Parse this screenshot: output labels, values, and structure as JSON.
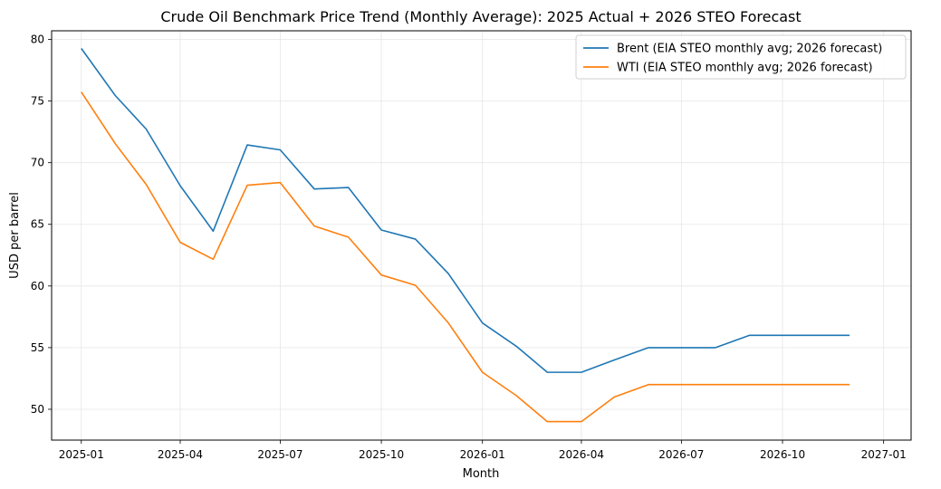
{
  "chart_data": {
    "type": "line",
    "title": "Crude Oil Benchmark Price Trend (Monthly Average): 2025 Actual + 2026 STEO Forecast",
    "xlabel": "Month",
    "ylabel": "USD per barrel",
    "x": [
      "2025-01",
      "2025-02",
      "2025-03",
      "2025-04",
      "2025-05",
      "2025-06",
      "2025-07",
      "2025-08",
      "2025-09",
      "2025-10",
      "2025-11",
      "2025-12",
      "2026-01",
      "2026-02",
      "2026-03",
      "2026-04",
      "2026-05",
      "2026-06",
      "2026-07",
      "2026-08",
      "2026-09",
      "2026-10",
      "2026-11",
      "2026-12"
    ],
    "x_ticks": [
      "2025-01",
      "2025-04",
      "2025-07",
      "2025-10",
      "2026-01",
      "2026-04",
      "2026-07",
      "2026-10",
      "2027-01"
    ],
    "xlim": [
      "2024-12-05",
      "2027-01-26"
    ],
    "ylim": [
      47.5,
      80.7
    ],
    "y_ticks": [
      50,
      55,
      60,
      65,
      70,
      75,
      80
    ],
    "grid": true,
    "legend_position": "top-right",
    "series": [
      {
        "name": "Brent (EIA STEO monthly avg; 2026 forecast)",
        "color": "#1f77b4",
        "values": [
          79.27,
          75.44,
          72.73,
          68.13,
          64.45,
          71.44,
          71.04,
          67.87,
          67.99,
          64.54,
          63.8,
          61.0,
          57.0,
          55.1,
          53.0,
          53.0,
          54.0,
          55.0,
          55.0,
          55.0,
          56.0,
          56.0,
          56.0,
          56.0
        ]
      },
      {
        "name": "WTI (EIA STEO monthly avg; 2026 forecast)",
        "color": "#ff7f0e",
        "values": [
          75.74,
          71.53,
          68.24,
          63.54,
          62.17,
          68.17,
          68.39,
          64.86,
          63.96,
          60.89,
          60.06,
          57.0,
          53.0,
          51.1,
          49.0,
          49.0,
          51.0,
          52.0,
          52.0,
          52.0,
          52.0,
          52.0,
          52.0,
          52.0
        ]
      }
    ]
  }
}
